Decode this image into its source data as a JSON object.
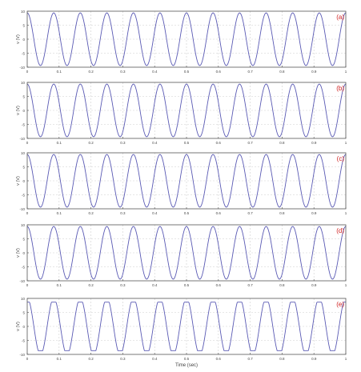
{
  "chart_data": [
    {
      "type": "line",
      "panel_label": "(a)",
      "ylabel": "v (V)",
      "ylim": [
        -10,
        10
      ],
      "y_ticks": [
        "10",
        "5",
        "0",
        "-5",
        "-10"
      ],
      "xlim": [
        0,
        1
      ],
      "x_ticks": [
        "0",
        "0.1",
        "0.2",
        "0.3",
        "0.4",
        "0.5",
        "0.6",
        "0.7",
        "0.8",
        "0.9",
        "1"
      ],
      "grid": true,
      "series": [
        {
          "cycles": 12,
          "amplitude": 10,
          "phase": 0.25,
          "waveform": "sine"
        }
      ]
    },
    {
      "type": "line",
      "panel_label": "(b)",
      "ylabel": "v (V)",
      "ylim": [
        -10,
        10
      ],
      "y_ticks": [
        "10",
        "5",
        "0",
        "-5",
        "-10"
      ],
      "xlim": [
        0,
        1
      ],
      "x_ticks": [
        "0",
        "0.1",
        "0.2",
        "0.3",
        "0.4",
        "0.5",
        "0.6",
        "0.7",
        "0.8",
        "0.9",
        "1"
      ],
      "grid": true,
      "series": [
        {
          "cycles": 12,
          "amplitude": 10,
          "phase": 0.25,
          "waveform": "sine"
        }
      ]
    },
    {
      "type": "line",
      "panel_label": "(c)",
      "ylabel": "v (V)",
      "ylim": [
        -10,
        10
      ],
      "y_ticks": [
        "10",
        "5",
        "0",
        "-5",
        "-10"
      ],
      "xlim": [
        0,
        1
      ],
      "x_ticks": [
        "0",
        "0.1",
        "0.2",
        "0.3",
        "0.4",
        "0.5",
        "0.6",
        "0.7",
        "0.8",
        "0.9",
        "1"
      ],
      "grid": true,
      "series": [
        {
          "cycles": 12,
          "amplitude": 10,
          "phase": 0.25,
          "waveform": "sine"
        }
      ]
    },
    {
      "type": "line",
      "panel_label": "(d)",
      "ylabel": "v (V)",
      "ylim": [
        -10,
        10
      ],
      "y_ticks": [
        "10",
        "5",
        "0",
        "-5",
        "-10"
      ],
      "xlim": [
        0,
        1
      ],
      "x_ticks": [
        "0",
        "0.1",
        "0.2",
        "0.3",
        "0.4",
        "0.5",
        "0.6",
        "0.7",
        "0.8",
        "0.9",
        "1"
      ],
      "grid": true,
      "series": [
        {
          "cycles": 12,
          "amplitude": 10,
          "phase": 0.25,
          "waveform": "sine"
        }
      ]
    },
    {
      "type": "line",
      "panel_label": "(e)",
      "ylabel": "v (V)",
      "xlabel": "Time (sec)",
      "ylim": [
        -10,
        10
      ],
      "y_ticks": [
        "10",
        "5",
        "0",
        "-5",
        "-10"
      ],
      "xlim": [
        0,
        1
      ],
      "x_ticks": [
        "0",
        "0.1",
        "0.2",
        "0.3",
        "0.4",
        "0.5",
        "0.6",
        "0.7",
        "0.8",
        "0.9",
        "1"
      ],
      "grid": true,
      "series": [
        {
          "cycles": 12,
          "amplitude": 10,
          "phase": 0.25,
          "waveform": "clipped-sine"
        }
      ]
    }
  ],
  "colors": {
    "trace": "#5a5ab4",
    "grid": "#cfcfcf",
    "axis": "#555555",
    "panel_label": "#d02020",
    "text": "#444444"
  }
}
